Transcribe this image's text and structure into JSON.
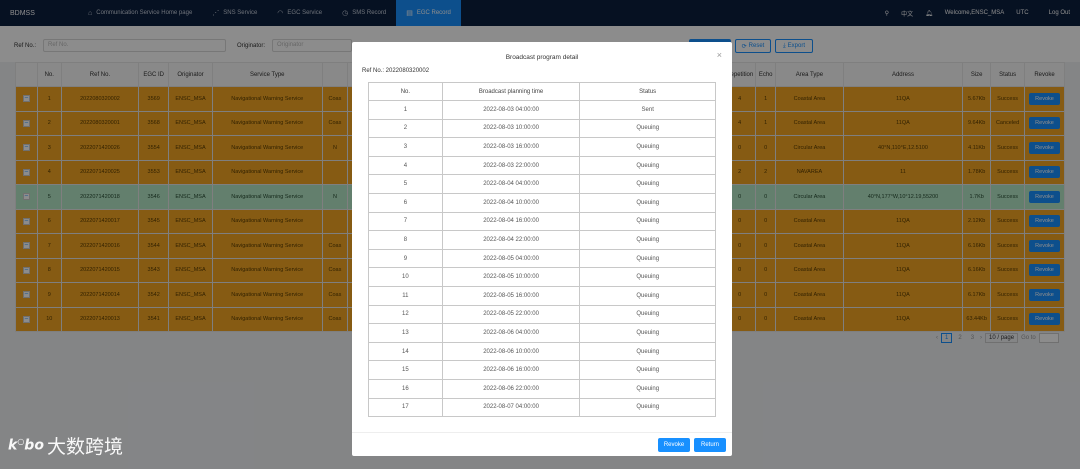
{
  "nav": {
    "brand": "BDMSS",
    "items": [
      {
        "label": "Communication Service Home page",
        "icon": "home-icon",
        "glyph": "⌂"
      },
      {
        "label": "SNS Service",
        "icon": "signal-icon",
        "glyph": "⋰"
      },
      {
        "label": "EGC Service",
        "icon": "wifi-icon",
        "glyph": "◠"
      },
      {
        "label": "SMS Record",
        "icon": "history-icon",
        "glyph": "◷"
      },
      {
        "label": "EGC Record",
        "icon": "document-icon",
        "glyph": "▤"
      }
    ],
    "active_index": 4,
    "lang": "中文",
    "welcome": "Welcome,ENSC_MSA",
    "tz": "UTC",
    "logout": "Log Out"
  },
  "search": {
    "ref_label": "Ref No.:",
    "ref_placeholder": "Ref No.",
    "originator_label": "Originator:",
    "originator_placeholder": "Originator",
    "reset": "Reset",
    "export": "Export"
  },
  "table": {
    "headers": [
      "",
      "No.",
      "Ref No.",
      "EGC ID",
      "Originator",
      "Service Type",
      "",
      "",
      "",
      "",
      "",
      "",
      "",
      "",
      "",
      "",
      "Repetition",
      "Echo",
      "Area Type",
      "Address",
      "Size",
      "Status",
      "Revoke"
    ],
    "rows": [
      {
        "no": "1",
        "ref": "2022080320002",
        "egc": "3569",
        "orig": "ENSC_MSA",
        "svc": "Navigational Warning Service",
        "svc2": "Coas",
        "rep": "4",
        "echo": "1",
        "area": "Coastal Area",
        "addr": "11QA",
        "size": "5.67Kb",
        "status": "Success",
        "revoke": "Revoke",
        "color": "orange"
      },
      {
        "no": "2",
        "ref": "2022080320001",
        "egc": "3568",
        "orig": "ENSC_MSA",
        "svc": "Navigational Warning Service",
        "svc2": "Coas",
        "rep": "4",
        "echo": "1",
        "area": "Coastal Area",
        "addr": "11QA",
        "size": "9.64Kb",
        "status": "Canceled",
        "revoke": "Revoke",
        "color": "orange"
      },
      {
        "no": "3",
        "ref": "2022071420026",
        "egc": "3554",
        "orig": "ENSC_MSA",
        "svc": "Navigational Warning Service",
        "svc2": "N",
        "rep": "0",
        "echo": "0",
        "area": "Circular Area",
        "addr": "40°N,110°E,12.5100",
        "size": "4.11Kb",
        "status": "Success",
        "revoke": "Revoke",
        "color": "orange"
      },
      {
        "no": "4",
        "ref": "2022071420025",
        "egc": "3553",
        "orig": "ENSC_MSA",
        "svc": "Navigational Warning Service",
        "svc2": "",
        "rep": "2",
        "echo": "2",
        "area": "NAVAREA",
        "addr": "11",
        "size": "1.78Kb",
        "status": "Success",
        "revoke": "Revoke",
        "color": "orange"
      },
      {
        "no": "5",
        "ref": "2022071420018",
        "egc": "3546",
        "orig": "ENSC_MSA",
        "svc": "Navigational Warning Service",
        "svc2": "N",
        "rep": "0",
        "echo": "0",
        "area": "Circular Area",
        "addr": "40°N,177°W,10°12.19,55200",
        "size": "1.7Kb",
        "status": "Success",
        "revoke": "Revoke",
        "color": "green"
      },
      {
        "no": "6",
        "ref": "2022071420017",
        "egc": "3545",
        "orig": "ENSC_MSA",
        "svc": "Navigational Warning Service",
        "svc2": "",
        "rep": "0",
        "echo": "0",
        "area": "Coastal Area",
        "addr": "11QA",
        "size": "2.12Kb",
        "status": "Success",
        "revoke": "Revoke",
        "color": "orange"
      },
      {
        "no": "7",
        "ref": "2022071420016",
        "egc": "3544",
        "orig": "ENSC_MSA",
        "svc": "Navigational Warning Service",
        "svc2": "Coas",
        "rep": "0",
        "echo": "0",
        "area": "Coastal Area",
        "addr": "11QA",
        "size": "6.16Kb",
        "status": "Success",
        "revoke": "Revoke",
        "color": "orange"
      },
      {
        "no": "8",
        "ref": "2022071420015",
        "egc": "3543",
        "orig": "ENSC_MSA",
        "svc": "Navigational Warning Service",
        "svc2": "Coas",
        "rep": "0",
        "echo": "0",
        "area": "Coastal Area",
        "addr": "11QA",
        "size": "6.16Kb",
        "status": "Success",
        "revoke": "Revoke",
        "color": "orange"
      },
      {
        "no": "9",
        "ref": "2022071420014",
        "egc": "3542",
        "orig": "ENSC_MSA",
        "svc": "Navigational Warning Service",
        "svc2": "Coas",
        "rep": "0",
        "echo": "0",
        "area": "Coastal Area",
        "addr": "11QA",
        "size": "6.17Kb",
        "status": "Success",
        "revoke": "Revoke",
        "color": "orange"
      },
      {
        "no": "10",
        "ref": "2022071420013",
        "egc": "3541",
        "orig": "ENSC_MSA",
        "svc": "Navigational Warning Service",
        "svc2": "Coas",
        "rep": "0",
        "echo": "0",
        "area": "Coastal Area",
        "addr": "11QA",
        "size": "63.44Kb",
        "status": "Success",
        "revoke": "Revoke",
        "color": "orange"
      }
    ]
  },
  "pager": {
    "pages": [
      "1",
      "2",
      "3"
    ],
    "current": "1",
    "size": "10 / page",
    "goto": "Go to"
  },
  "modal": {
    "title": "Broadcast program detail",
    "ref": "Ref No.: 2022080320002",
    "headers": [
      "No.",
      "Broadcast planning time",
      "Status"
    ],
    "rows": [
      [
        "1",
        "2022-08-03 04:00:00",
        "Sent"
      ],
      [
        "2",
        "2022-08-03 10:00:00",
        "Queuing"
      ],
      [
        "3",
        "2022-08-03 16:00:00",
        "Queuing"
      ],
      [
        "4",
        "2022-08-03 22:00:00",
        "Queuing"
      ],
      [
        "5",
        "2022-08-04 04:00:00",
        "Queuing"
      ],
      [
        "6",
        "2022-08-04 10:00:00",
        "Queuing"
      ],
      [
        "7",
        "2022-08-04 16:00:00",
        "Queuing"
      ],
      [
        "8",
        "2022-08-04 22:00:00",
        "Queuing"
      ],
      [
        "9",
        "2022-08-05 04:00:00",
        "Queuing"
      ],
      [
        "10",
        "2022-08-05 10:00:00",
        "Queuing"
      ],
      [
        "11",
        "2022-08-05 16:00:00",
        "Queuing"
      ],
      [
        "12",
        "2022-08-05 22:00:00",
        "Queuing"
      ],
      [
        "13",
        "2022-08-06 04:00:00",
        "Queuing"
      ],
      [
        "14",
        "2022-08-06 10:00:00",
        "Queuing"
      ],
      [
        "15",
        "2022-08-06 16:00:00",
        "Queuing"
      ],
      [
        "16",
        "2022-08-06 22:00:00",
        "Queuing"
      ],
      [
        "17",
        "2022-08-07 04:00:00",
        "Queuing"
      ]
    ],
    "revoke": "Revoke",
    "return": "Return"
  },
  "watermark": {
    "mark": "k̈bo",
    "text": "大数跨境"
  }
}
